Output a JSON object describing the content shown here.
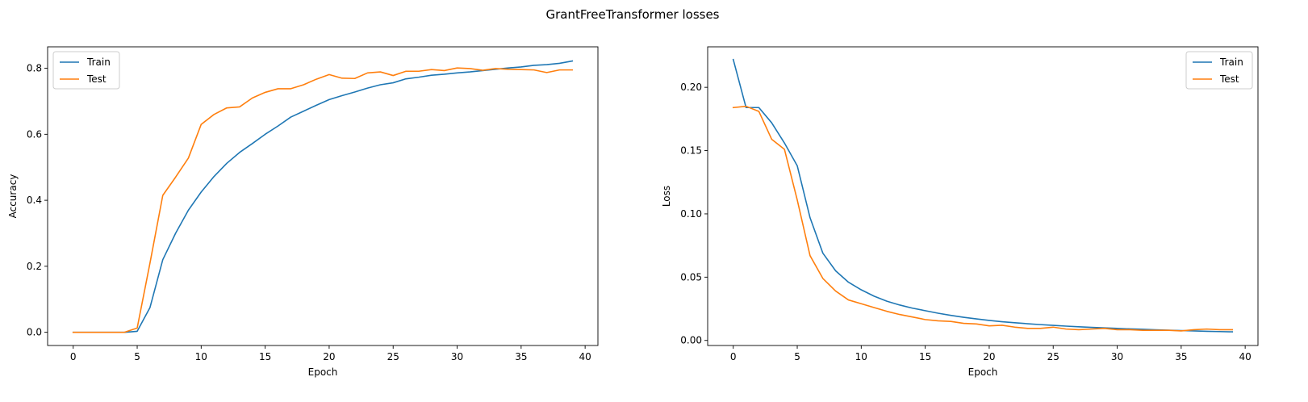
{
  "figure": {
    "suptitle": "GrantFreeTransformer losses"
  },
  "colors": {
    "train": "#1f77b4",
    "test": "#ff7f0e"
  },
  "chart_data": [
    {
      "type": "line",
      "title": "",
      "xlabel": "Epoch",
      "ylabel": "Accuracy",
      "xlim": [
        -2,
        41
      ],
      "ylim": [
        -0.04,
        0.865
      ],
      "xticks": [
        0,
        5,
        10,
        15,
        20,
        25,
        30,
        35,
        40
      ],
      "xtick_labels": [
        "0",
        "5",
        "10",
        "15",
        "20",
        "25",
        "30",
        "35",
        "40"
      ],
      "yticks": [
        0.0,
        0.2,
        0.4,
        0.6,
        0.8
      ],
      "ytick_labels": [
        "0.0",
        "0.2",
        "0.4",
        "0.6",
        "0.8"
      ],
      "grid": false,
      "legend_position": "top-left",
      "x": [
        0,
        1,
        2,
        3,
        4,
        5,
        6,
        7,
        8,
        9,
        10,
        11,
        12,
        13,
        14,
        15,
        16,
        17,
        18,
        19,
        20,
        21,
        22,
        23,
        24,
        25,
        26,
        27,
        28,
        29,
        30,
        31,
        32,
        33,
        34,
        35,
        36,
        37,
        38,
        39
      ],
      "series": [
        {
          "name": "Train",
          "color": "#1f77b4",
          "values": [
            0.0,
            0.0,
            0.0,
            0.0,
            0.0,
            0.003,
            0.075,
            0.22,
            0.3,
            0.37,
            0.425,
            0.472,
            0.512,
            0.545,
            0.572,
            0.6,
            0.625,
            0.652,
            0.67,
            0.688,
            0.705,
            0.717,
            0.728,
            0.74,
            0.75,
            0.756,
            0.768,
            0.773,
            0.779,
            0.782,
            0.786,
            0.789,
            0.793,
            0.797,
            0.801,
            0.804,
            0.809,
            0.811,
            0.815,
            0.822
          ]
        },
        {
          "name": "Test",
          "color": "#ff7f0e",
          "values": [
            0.0,
            0.0,
            0.0,
            0.0,
            0.0,
            0.013,
            0.21,
            0.415,
            0.47,
            0.528,
            0.63,
            0.66,
            0.68,
            0.683,
            0.71,
            0.727,
            0.738,
            0.738,
            0.75,
            0.767,
            0.781,
            0.77,
            0.769,
            0.786,
            0.789,
            0.778,
            0.791,
            0.791,
            0.796,
            0.793,
            0.801,
            0.799,
            0.794,
            0.799,
            0.797,
            0.796,
            0.795,
            0.787,
            0.795,
            0.795
          ]
        }
      ]
    },
    {
      "type": "line",
      "title": "",
      "xlabel": "Epoch",
      "ylabel": "Loss",
      "xlim": [
        -2,
        41
      ],
      "ylim": [
        -0.004,
        0.232
      ],
      "xticks": [
        0,
        5,
        10,
        15,
        20,
        25,
        30,
        35,
        40
      ],
      "xtick_labels": [
        "0",
        "5",
        "10",
        "15",
        "20",
        "25",
        "30",
        "35",
        "40"
      ],
      "yticks": [
        0.0,
        0.05,
        0.1,
        0.15,
        0.2
      ],
      "ytick_labels": [
        "0.00",
        "0.05",
        "0.10",
        "0.15",
        "0.20"
      ],
      "grid": false,
      "legend_position": "top-right",
      "x": [
        0,
        1,
        2,
        3,
        4,
        5,
        6,
        7,
        8,
        9,
        10,
        11,
        12,
        13,
        14,
        15,
        16,
        17,
        18,
        19,
        20,
        21,
        22,
        23,
        24,
        25,
        26,
        27,
        28,
        29,
        30,
        31,
        32,
        33,
        34,
        35,
        36,
        37,
        38,
        39
      ],
      "series": [
        {
          "name": "Train",
          "color": "#1f77b4",
          "values": [
            0.222,
            0.184,
            0.184,
            0.172,
            0.156,
            0.138,
            0.097,
            0.069,
            0.055,
            0.046,
            0.04,
            0.035,
            0.031,
            0.028,
            0.0255,
            0.0235,
            0.0215,
            0.0198,
            0.0183,
            0.017,
            0.0158,
            0.0148,
            0.014,
            0.0132,
            0.0125,
            0.0119,
            0.0113,
            0.0108,
            0.0103,
            0.0099,
            0.0095,
            0.0091,
            0.0088,
            0.0084,
            0.0081,
            0.0078,
            0.0075,
            0.0072,
            0.007,
            0.0068
          ]
        },
        {
          "name": "Test",
          "color": "#ff7f0e",
          "values": [
            0.184,
            0.185,
            0.181,
            0.159,
            0.151,
            0.111,
            0.067,
            0.049,
            0.039,
            0.032,
            0.029,
            0.026,
            0.023,
            0.0205,
            0.0185,
            0.0165,
            0.0155,
            0.015,
            0.0135,
            0.013,
            0.0115,
            0.012,
            0.0105,
            0.0095,
            0.0095,
            0.0105,
            0.009,
            0.0085,
            0.009,
            0.0095,
            0.0085,
            0.0085,
            0.008,
            0.008,
            0.008,
            0.0075,
            0.0085,
            0.009,
            0.0085,
            0.0085
          ]
        }
      ]
    }
  ]
}
